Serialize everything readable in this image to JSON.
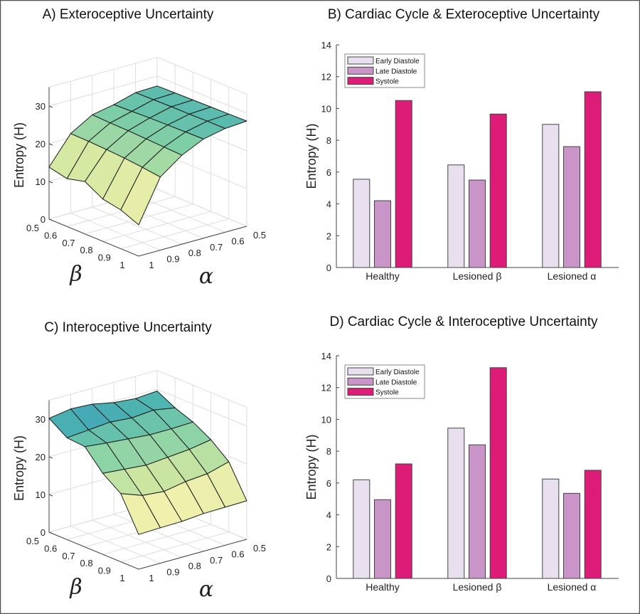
{
  "chart_data": [
    {
      "type": "surface",
      "title": "A) Exteroceptive Uncertainty",
      "zlabel": "Entropy (H)",
      "xlabel": "α",
      "ylabel": "β",
      "alpha_ticks": [
        "1",
        "0.9",
        "0.8",
        "0.7",
        "0.6",
        "0.5"
      ],
      "beta_ticks": [
        "0.5",
        "0.6",
        "0.7",
        "0.8",
        "0.9",
        "1"
      ],
      "zticks": [
        "0",
        "10",
        "20",
        "30"
      ],
      "zlim": [
        0,
        35
      ],
      "alpha": [
        1,
        0.9,
        0.8,
        0.7,
        0.6,
        0.5
      ],
      "beta": [
        0.5,
        0.6,
        0.7,
        0.8,
        0.9,
        1
      ],
      "z": [
        [
          13.8,
          12.7,
          13.9,
          11.2,
          10.3,
          8.3
        ],
        [
          21.1,
          21.0,
          20.8,
          20.5,
          20.0,
          19.4
        ],
        [
          24.5,
          24.3,
          24.2,
          24.0,
          23.8,
          23.6
        ],
        [
          25.6,
          25.8,
          26.0,
          26.1,
          26.2,
          26.3
        ],
        [
          27.2,
          27.3,
          27.4,
          27.4,
          27.5,
          27.5
        ],
        [
          27.4,
          27.5,
          27.6,
          27.7,
          27.8,
          27.9
        ]
      ],
      "grid": true
    },
    {
      "type": "bar",
      "title": "B) Cardiac Cycle & Exteroceptive Uncertainty",
      "ylabel": "Entropy (H)",
      "categories": [
        "Healthy",
        "Lesioned β",
        "Lesioned α"
      ],
      "ylim": [
        0,
        14
      ],
      "yticks": [
        "0",
        "2",
        "4",
        "6",
        "8",
        "10",
        "12",
        "14"
      ],
      "legend_position": "top-left",
      "series": [
        {
          "name": "Early Diastole",
          "color": "#e8e0ee",
          "values": [
            5.55,
            6.45,
            9.0
          ]
        },
        {
          "name": "Late Diastole",
          "color": "#c994c7",
          "values": [
            4.2,
            5.5,
            7.6
          ]
        },
        {
          "name": "Systole",
          "color": "#dd1c77",
          "values": [
            10.5,
            9.65,
            11.05
          ]
        }
      ],
      "grid": false
    },
    {
      "type": "surface",
      "title": "C) Interoceptive Uncertainty",
      "zlabel": "Entropy (H)",
      "xlabel": "α",
      "ylabel": "β",
      "alpha_ticks": [
        "1",
        "0.9",
        "0.8",
        "0.7",
        "0.6",
        "0.5"
      ],
      "beta_ticks": [
        "0.5",
        "0.6",
        "0.7",
        "0.8",
        "0.9",
        "1"
      ],
      "zticks": [
        "0",
        "10",
        "20",
        "30"
      ],
      "zlim": [
        0,
        35
      ],
      "alpha": [
        1,
        0.9,
        0.8,
        0.7,
        0.6,
        0.5
      ],
      "beta": [
        0.5,
        0.6,
        0.7,
        0.8,
        0.9,
        1
      ],
      "z": [
        [
          30.2,
          27.0,
          26.6,
          21.5,
          18.1,
          9.2
        ],
        [
          31.1,
          27.5,
          26.0,
          21.0,
          16.0,
          9.4
        ],
        [
          30.8,
          28.0,
          25.5,
          20.5,
          15.5,
          9.5
        ],
        [
          29.6,
          27.5,
          25.0,
          21.0,
          16.5,
          10.0
        ],
        [
          29.1,
          28.0,
          25.0,
          21.5,
          17.0,
          10.1
        ],
        [
          29.5,
          27.0,
          25.2,
          22.5,
          18.6,
          10.2
        ]
      ],
      "grid": true
    },
    {
      "type": "bar",
      "title": "D) Cardiac Cycle & Interoceptive Uncertainty",
      "ylabel": "Entropy (H)",
      "categories": [
        "Healthy",
        "Lesioned β",
        "Lesioned α"
      ],
      "ylim": [
        0,
        14
      ],
      "yticks": [
        "0",
        "2",
        "4",
        "6",
        "8",
        "10",
        "12",
        "14"
      ],
      "legend_position": "top-left",
      "series": [
        {
          "name": "Early Diastole",
          "color": "#e8e0ee",
          "values": [
            6.2,
            9.45,
            6.25
          ]
        },
        {
          "name": "Late Diastole",
          "color": "#c994c7",
          "values": [
            4.95,
            8.4,
            5.35
          ]
        },
        {
          "name": "Systole",
          "color": "#dd1c77",
          "values": [
            7.2,
            13.25,
            6.8
          ]
        }
      ],
      "grid": false
    }
  ],
  "colors": {
    "frame": "#555555",
    "surface_low": "#fbf3b0",
    "surface_mid": "#7fcfa5",
    "surface_high": "#2b8cc4"
  }
}
